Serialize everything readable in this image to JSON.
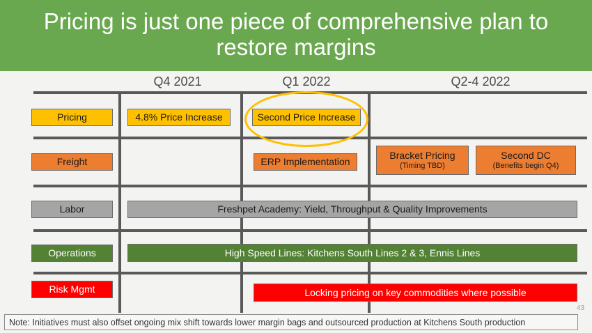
{
  "title": "Pricing is just one piece of comprehensive plan to restore margins",
  "columns": [
    "Q4 2021",
    "Q1 2022",
    "Q2-4 2022"
  ],
  "rows": {
    "pricing": "Pricing",
    "freight": "Freight",
    "labor": "Labor",
    "operations": "Operations",
    "risk": "Risk Mgmt"
  },
  "items": {
    "price_increase_1": "4.8% Price Increase",
    "price_increase_2": "Second Price Increase",
    "erp": "ERP Implementation",
    "bracket_title": "Bracket Pricing",
    "bracket_sub": "(Timing TBD)",
    "dc_title": "Second DC",
    "dc_sub": "(Benefits begin Q4)",
    "academy": "Freshpet Academy:  Yield, Throughput & Quality Improvements",
    "lines": "High Speed Lines:  Kitchens South Lines 2 & 3, Ennis Lines",
    "locking": "Locking pricing on key commodities where possible"
  },
  "note": "Note:  Initiatives must also offset ongoing mix shift towards lower margin bags and outsourced production at Kitchens South production",
  "page_number": "43",
  "colors": {
    "header_green": "#6aa84f",
    "pricing_yellow": "#ffc000",
    "freight_orange": "#ed7d31",
    "labor_gray": "#a5a5a5",
    "operations_green": "#548235",
    "risk_red": "#ff0000"
  }
}
